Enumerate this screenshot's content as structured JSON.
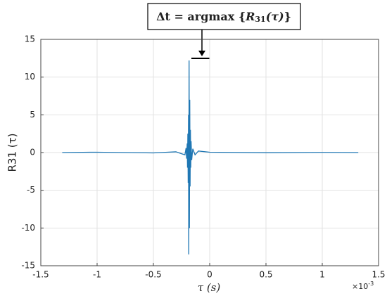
{
  "chart_data": {
    "type": "line",
    "annotation": [
      "Δt = argmax {",
      "R",
      "31",
      "(τ)",
      "}"
    ],
    "xlabel": "τ  (s)",
    "ylabel": "R31 (τ)",
    "x_exponent": {
      "base": "×10",
      "power": "-3"
    },
    "xlim": [
      -1.5,
      1.5
    ],
    "xticks": [
      -1.5,
      -1,
      -0.5,
      0,
      0.5,
      1,
      1.5
    ],
    "ylim": [
      -15,
      15
    ],
    "yticks": [
      -15,
      -10,
      -5,
      0,
      5,
      10,
      15
    ],
    "grid": true,
    "series": [
      {
        "name": "R31",
        "color": "#1f77b4",
        "x": [
          -1.31,
          -1.0,
          -0.5,
          -0.3,
          -0.22,
          -0.21,
          -0.205,
          -0.2,
          -0.197,
          -0.194,
          -0.191,
          -0.188,
          -0.186,
          -0.183,
          -0.18,
          -0.177,
          -0.174,
          -0.171,
          -0.168,
          -0.165,
          -0.16,
          -0.15,
          -0.13,
          -0.1,
          0,
          0.5,
          1.0,
          1.32
        ],
        "values": [
          0,
          0.05,
          -0.05,
          0.1,
          -0.3,
          0.6,
          -0.8,
          1.2,
          -2,
          2.5,
          -4,
          5,
          -13.5,
          12.2,
          -10,
          7,
          -4.5,
          3,
          -2,
          1.5,
          -1,
          0.5,
          -0.3,
          0.2,
          0.05,
          -0.03,
          0.02,
          0
        ]
      }
    ]
  }
}
